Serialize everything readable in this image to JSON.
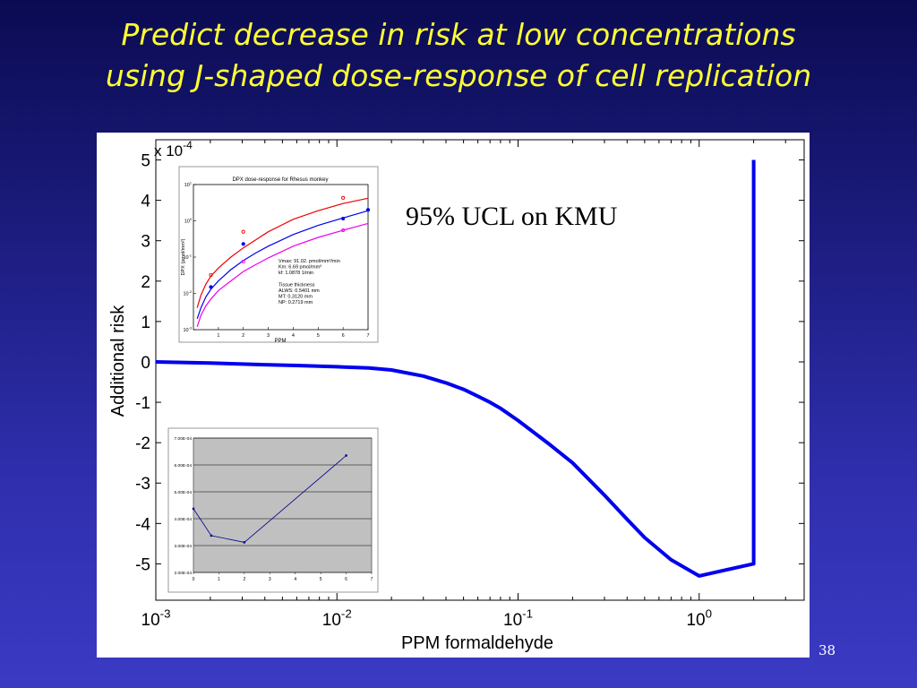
{
  "slide": {
    "title_line1": "Predict decrease in risk at low concentrations",
    "title_line2": "using J-shaped dose-response of cell replication",
    "slide_number": "38"
  },
  "chart_data": [
    {
      "type": "line",
      "annotation": "95% UCL on KMU",
      "xlabel": "PPM formaldehyde",
      "ylabel": "Additional risk",
      "y_multiplier": "x 10",
      "y_multiplier_exp": "-4",
      "x_scale": "log",
      "xlim": [
        0.001,
        3.8
      ],
      "ylim": [
        -5.9,
        5.5
      ],
      "grid": false,
      "x_ticks": [
        {
          "value": 0.001,
          "base": "10",
          "exp": "-3"
        },
        {
          "value": 0.01,
          "base": "10",
          "exp": "-2"
        },
        {
          "value": 0.1,
          "base": "10",
          "exp": "-1"
        },
        {
          "value": 1,
          "base": "10",
          "exp": "0"
        }
      ],
      "y_ticks": [
        5,
        4,
        3,
        2,
        1,
        0,
        -1,
        -2,
        -3,
        -4,
        -5
      ],
      "color": "#0000ee",
      "series": [
        {
          "x": [
            0.001,
            0.002,
            0.004,
            0.006,
            0.01,
            0.015,
            0.02,
            0.03,
            0.04,
            0.05,
            0.06,
            0.07,
            0.08,
            0.1,
            0.15,
            0.2,
            0.3,
            0.4,
            0.5,
            0.7,
            1.0,
            1.99,
            2.0,
            2.0
          ],
          "y": [
            0.0,
            -0.03,
            -0.07,
            -0.09,
            -0.12,
            -0.15,
            -0.2,
            -0.35,
            -0.52,
            -0.68,
            -0.85,
            -1.0,
            -1.15,
            -1.45,
            -2.05,
            -2.5,
            -3.3,
            -3.9,
            -4.35,
            -4.9,
            -5.3,
            -5.0,
            -5.0,
            5.0
          ]
        }
      ]
    },
    {
      "type": "line",
      "title": "DPX dose-response for Rhesus monkey",
      "xlabel": "PPM",
      "ylabel": "DPX (pmol/mm²)",
      "x_scale": "linear",
      "y_scale": "log",
      "xlim": [
        0,
        7
      ],
      "ylim": [
        0.001,
        10
      ],
      "x_ticks": [
        "1",
        "2",
        "3",
        "4",
        "5",
        "6",
        "7"
      ],
      "y_ticks": [
        {
          "value": 10,
          "base": "10",
          "exp": "1"
        },
        {
          "value": 1,
          "base": "10",
          "exp": "0"
        },
        {
          "value": 0.1,
          "base": "10",
          "exp": "-1"
        },
        {
          "value": 0.01,
          "base": "10",
          "exp": "-2"
        },
        {
          "value": 0.001,
          "base": "10",
          "exp": "-3"
        }
      ],
      "notes": [
        "Vmax: 91.02. pmol/mm³/min",
        "Km: 6.69 pmol/mm³",
        "kf: 1.0878 1/min",
        "",
        "Tissue thickness",
        "ALWS: 0.5401 mm",
        "MT: 0.3120 mm",
        "NP: 0.2719 mm"
      ],
      "series": [
        {
          "color": "#ee0000",
          "x": [
            0.15,
            0.3,
            0.5,
            0.7,
            1,
            1.5,
            2,
            2.5,
            3,
            4,
            5,
            6,
            7
          ],
          "y": [
            0.004,
            0.009,
            0.018,
            0.03,
            0.05,
            0.1,
            0.18,
            0.3,
            0.5,
            1.1,
            1.9,
            3.0,
            4.2
          ],
          "markers_x": [
            0.7,
            2,
            6
          ],
          "markers_y": [
            0.032,
            0.5,
            4.3
          ]
        },
        {
          "color": "#0000ee",
          "x": [
            0.15,
            0.3,
            0.5,
            0.7,
            1,
            1.5,
            2,
            2.5,
            3,
            4,
            5,
            6,
            7
          ],
          "y": [
            0.002,
            0.004,
            0.008,
            0.013,
            0.022,
            0.045,
            0.08,
            0.13,
            0.2,
            0.42,
            0.75,
            1.2,
            1.9
          ],
          "markers_x": [
            0.7,
            2,
            6,
            7
          ],
          "markers_y": [
            0.015,
            0.23,
            1.15,
            2.0
          ]
        },
        {
          "color": "#ee00ee",
          "x": [
            0.15,
            0.3,
            0.5,
            0.7,
            1,
            1.5,
            2,
            2.5,
            3,
            4,
            5,
            6,
            7
          ],
          "y": [
            0.0012,
            0.0025,
            0.0045,
            0.007,
            0.012,
            0.022,
            0.04,
            0.062,
            0.095,
            0.2,
            0.35,
            0.55,
            0.85
          ],
          "markers_x": [
            2,
            6
          ],
          "markers_y": [
            0.075,
            0.55
          ]
        }
      ]
    },
    {
      "type": "line",
      "xlim": [
        0,
        7
      ],
      "ylim": [
        0.0002,
        0.0007
      ],
      "grid": true,
      "x_ticks": [
        "0",
        "1",
        "2",
        "3",
        "4",
        "5",
        "6",
        "7"
      ],
      "y_ticks": [
        "7.00E-04",
        "6.00E-04",
        "5.00E-04",
        "4.00E-04",
        "3.00E-04",
        "2.00E-04"
      ],
      "y_tick_values": [
        0.0007,
        0.0006,
        0.0005,
        0.0004,
        0.0003,
        0.0002
      ],
      "background": "#c0c0c0",
      "series": [
        {
          "color": "#00008b",
          "x": [
            0,
            0.7,
            2,
            6
          ],
          "y": [
            0.000437,
            0.000337,
            0.000312,
            0.000635
          ]
        }
      ]
    }
  ]
}
